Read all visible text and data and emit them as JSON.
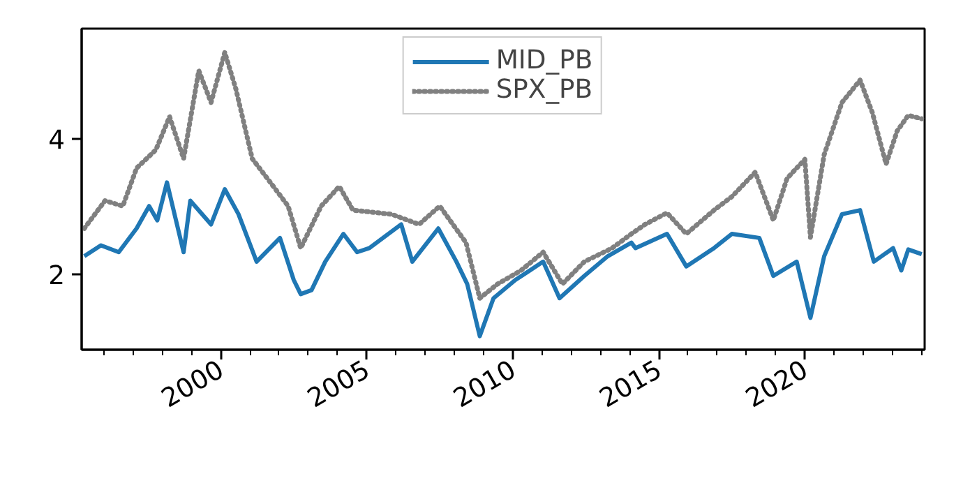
{
  "chart_data": {
    "type": "line",
    "xlim": [
      1995.24,
      2024.1
    ],
    "ylim": [
      0.89,
      5.63
    ],
    "xticks": [
      {
        "value": 1996,
        "label": null
      },
      {
        "value": 1997,
        "label": null
      },
      {
        "value": 1998,
        "label": null
      },
      {
        "value": 1999,
        "label": null
      },
      2000,
      {
        "value": 2001,
        "label": null
      },
      {
        "value": 2002,
        "label": null
      },
      {
        "value": 2003,
        "label": null
      },
      {
        "value": 2004,
        "label": null
      },
      2005,
      {
        "value": 2006,
        "label": null
      },
      {
        "value": 2007,
        "label": null
      },
      {
        "value": 2008,
        "label": null
      },
      {
        "value": 2009,
        "label": null
      },
      2010,
      {
        "value": 2011,
        "label": null
      },
      {
        "value": 2012,
        "label": null
      },
      {
        "value": 2013,
        "label": null
      },
      {
        "value": 2014,
        "label": null
      },
      2015,
      {
        "value": 2016,
        "label": null
      },
      {
        "value": 2017,
        "label": null
      },
      {
        "value": 2018,
        "label": null
      },
      {
        "value": 2019,
        "label": null
      },
      2020,
      {
        "value": 2021,
        "label": null
      },
      {
        "value": 2022,
        "label": null
      },
      {
        "value": 2023,
        "label": null
      },
      {
        "value": 2024,
        "label": null
      }
    ],
    "yticks": [
      2,
      4
    ],
    "grid": false,
    "legend": "top",
    "marker": "none",
    "series": [
      {
        "name": "MID_PB",
        "color": "#1f77b4",
        "line_style": "solid",
        "x": [
          1995.33,
          1995.9,
          1996.51,
          1997.12,
          1997.55,
          1997.83,
          1998.16,
          1998.73,
          1998.96,
          1999.67,
          2000.14,
          2000.61,
          2001.23,
          2002.03,
          2002.5,
          2002.74,
          2003.11,
          2003.58,
          2004.2,
          2004.67,
          2005.09,
          2006.18,
          2006.56,
          2007.45,
          2008.07,
          2008.44,
          2008.87,
          2009.34,
          2010.09,
          2011.04,
          2011.6,
          2012.45,
          2013.25,
          2014.06,
          2014.2,
          2015.28,
          2015.94,
          2016.89,
          2017.5,
          2018.44,
          2018.92,
          2019.72,
          2020.19,
          2020.66,
          2021.27,
          2021.89,
          2022.36,
          2023.02,
          2023.3,
          2023.54,
          2024.0
        ],
        "values": [
          2.27,
          2.43,
          2.33,
          2.68,
          3.01,
          2.8,
          3.36,
          2.33,
          3.09,
          2.74,
          3.26,
          2.89,
          2.19,
          2.54,
          1.92,
          1.71,
          1.77,
          2.19,
          2.6,
          2.33,
          2.39,
          2.74,
          2.19,
          2.68,
          2.19,
          1.86,
          1.09,
          1.65,
          1.92,
          2.19,
          1.65,
          1.98,
          2.27,
          2.47,
          2.39,
          2.6,
          2.12,
          2.39,
          2.6,
          2.54,
          1.98,
          2.19,
          1.36,
          2.27,
          2.89,
          2.95,
          2.19,
          2.39,
          2.06,
          2.37,
          2.3
        ]
      },
      {
        "name": "SPX_PB",
        "color": "#808080",
        "line_style": "dotted",
        "x": [
          1995.33,
          1996.04,
          1996.65,
          1997.12,
          1997.78,
          1998.25,
          1998.73,
          1999.25,
          1999.67,
          2000.14,
          2000.52,
          2001.08,
          2001.7,
          2002.31,
          2002.74,
          2003.44,
          2004.06,
          2004.53,
          2005.85,
          2006.79,
          2007.5,
          2008.4,
          2008.87,
          2009.48,
          2010.28,
          2011.04,
          2011.7,
          2012.45,
          2013.4,
          2014.06,
          2014.53,
          2015.28,
          2015.94,
          2016.89,
          2017.5,
          2018.3,
          2018.92,
          2019.39,
          2020.0,
          2020.19,
          2020.66,
          2021.27,
          2021.89,
          2022.31,
          2022.78,
          2023.16,
          2023.54,
          2024.0
        ],
        "values": [
          2.68,
          3.09,
          3.01,
          3.57,
          3.84,
          4.33,
          3.71,
          5.01,
          4.54,
          5.28,
          4.74,
          3.71,
          3.36,
          3.01,
          2.39,
          3.01,
          3.3,
          2.95,
          2.89,
          2.74,
          3.01,
          2.47,
          1.65,
          1.86,
          2.06,
          2.33,
          1.86,
          2.19,
          2.39,
          2.6,
          2.74,
          2.91,
          2.6,
          2.95,
          3.15,
          3.51,
          2.8,
          3.42,
          3.7,
          2.55,
          3.77,
          4.54,
          4.87,
          4.39,
          3.63,
          4.12,
          4.35,
          4.3
        ]
      }
    ]
  }
}
